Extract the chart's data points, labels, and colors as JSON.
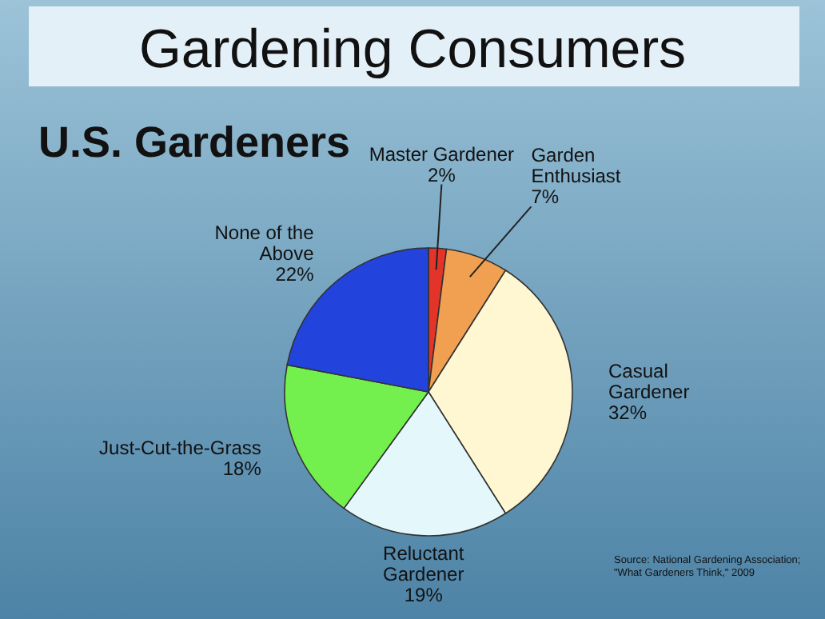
{
  "chart_data": {
    "type": "pie",
    "title": "Gardening Consumers",
    "subtitle": "U.S. Gardeners",
    "categories": [
      "Master Gardener",
      "Garden Enthusiast",
      "Casual Gardener",
      "Reluctant Gardener",
      "Just-Cut-the-Grass",
      "None of the Above"
    ],
    "values": [
      2,
      7,
      32,
      19,
      18,
      22
    ],
    "value_labels": [
      "2%",
      "7%",
      "32%",
      "19%",
      "18%",
      "22%"
    ],
    "colors": [
      "#e3342a",
      "#f0a050",
      "#fff6d2",
      "#e4f8fc",
      "#74f04e",
      "#2243dc"
    ],
    "annotations": [
      "Source: National Gardening Association; \"What Gardeners Think,\" 2009"
    ]
  }
}
